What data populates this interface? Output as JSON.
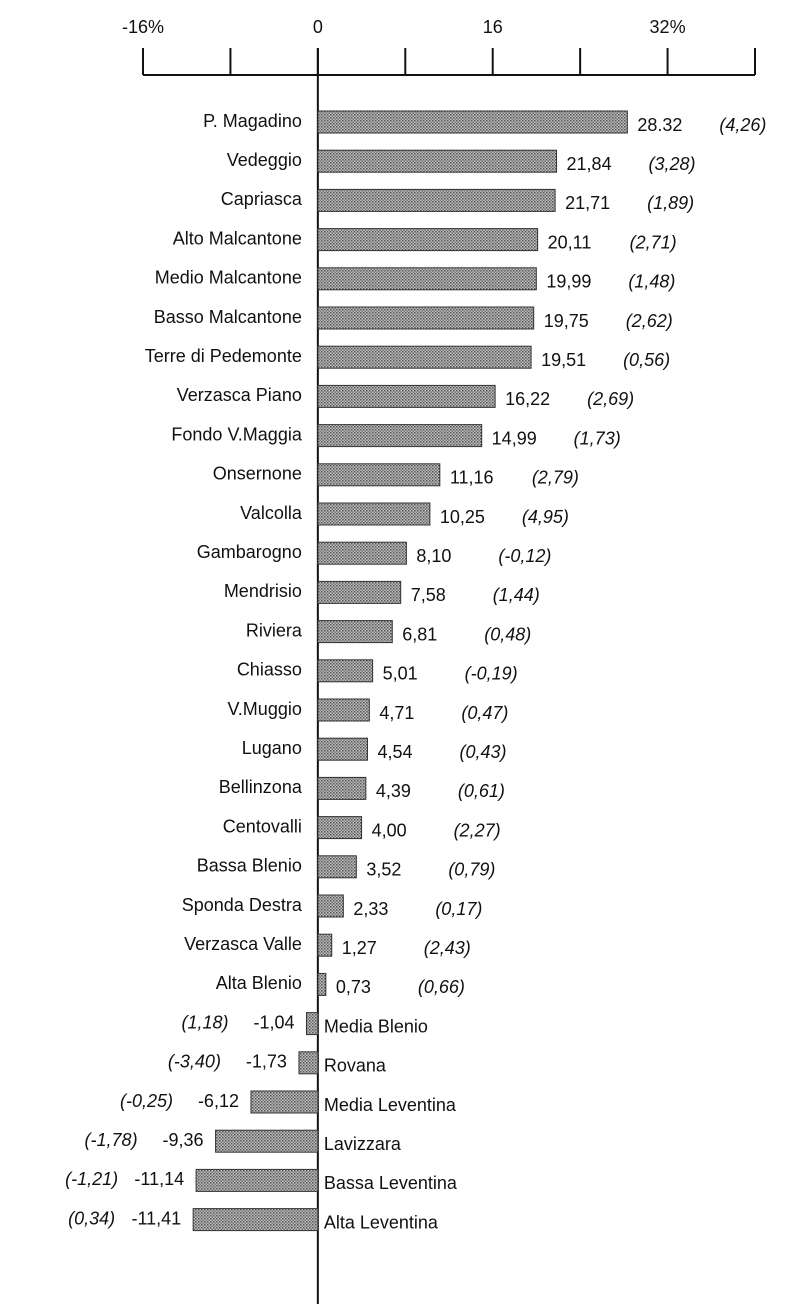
{
  "chart_data": {
    "type": "bar",
    "orientation": "horizontal",
    "categories": [
      "P. Magadino",
      "Vedeggio",
      "Capriasca",
      "Alto Malcantone",
      "Medio Malcantone",
      "Basso Malcantone",
      "Terre di Pedemonte",
      "Verzasca Piano",
      "Fondo V.Maggia",
      "Onsernone",
      "Valcolla",
      "Gambarogno",
      "Mendrisio",
      "Riviera",
      "Chiasso",
      "V.Muggio",
      "Lugano",
      "Bellinzona",
      "Centovalli",
      "Bassa Blenio",
      "Sponda Destra",
      "Verzasca Valle",
      "Alta Blenio",
      "Media Blenio",
      "Rovana",
      "Media Leventina",
      "Lavizzara",
      "Bassa Leventina",
      "Alta Leventina"
    ],
    "values": [
      28.32,
      21.84,
      21.71,
      20.11,
      19.99,
      19.75,
      19.51,
      16.22,
      14.99,
      11.16,
      10.25,
      8.1,
      7.58,
      6.81,
      5.01,
      4.71,
      4.54,
      4.39,
      4.0,
      3.52,
      2.33,
      1.27,
      0.73,
      -1.04,
      -1.73,
      -6.12,
      -9.36,
      -11.14,
      -11.41
    ],
    "value_labels": [
      "28.32",
      "21,84",
      "21,71",
      "20,11",
      "19,99",
      "19,75",
      "19,51",
      "16,22",
      "14,99",
      "11,16",
      "10,25",
      "8,10",
      "7,58",
      "6,81",
      "5,01",
      "4,71",
      "4,54",
      "4,39",
      "4,00",
      "3,52",
      "2,33",
      "1,27",
      "0,73",
      "-1,04",
      "-1,73",
      "-6,12",
      "-9,36",
      "-11,14",
      "-11,41"
    ],
    "secondary_labels": [
      "(4,26)",
      "(3,28)",
      "(1,89)",
      "(2,71)",
      "(1,48)",
      "(2,62)",
      "(0,56)",
      "(2,69)",
      "(1,73)",
      "(2,79)",
      "(4,95)",
      "(-0,12)",
      "(1,44)",
      "(0,48)",
      "(-0,19)",
      "(0,47)",
      "(0,43)",
      "(0,61)",
      "(2,27)",
      "(0,79)",
      "(0,17)",
      "(2,43)",
      "(0,66)",
      "(1,18)",
      "(-3,40)",
      "(-0,25)",
      "(-1,78)",
      "(-1,21)",
      "(0,34)"
    ],
    "xlim": [
      -16,
      40
    ],
    "xticks": [
      {
        "value": -16,
        "label": "-16%"
      },
      0,
      16,
      {
        "value": 32,
        "label": "32%"
      }
    ],
    "minor_xticks": [
      -8,
      8,
      24,
      40
    ],
    "color": "#8c8c8c"
  }
}
